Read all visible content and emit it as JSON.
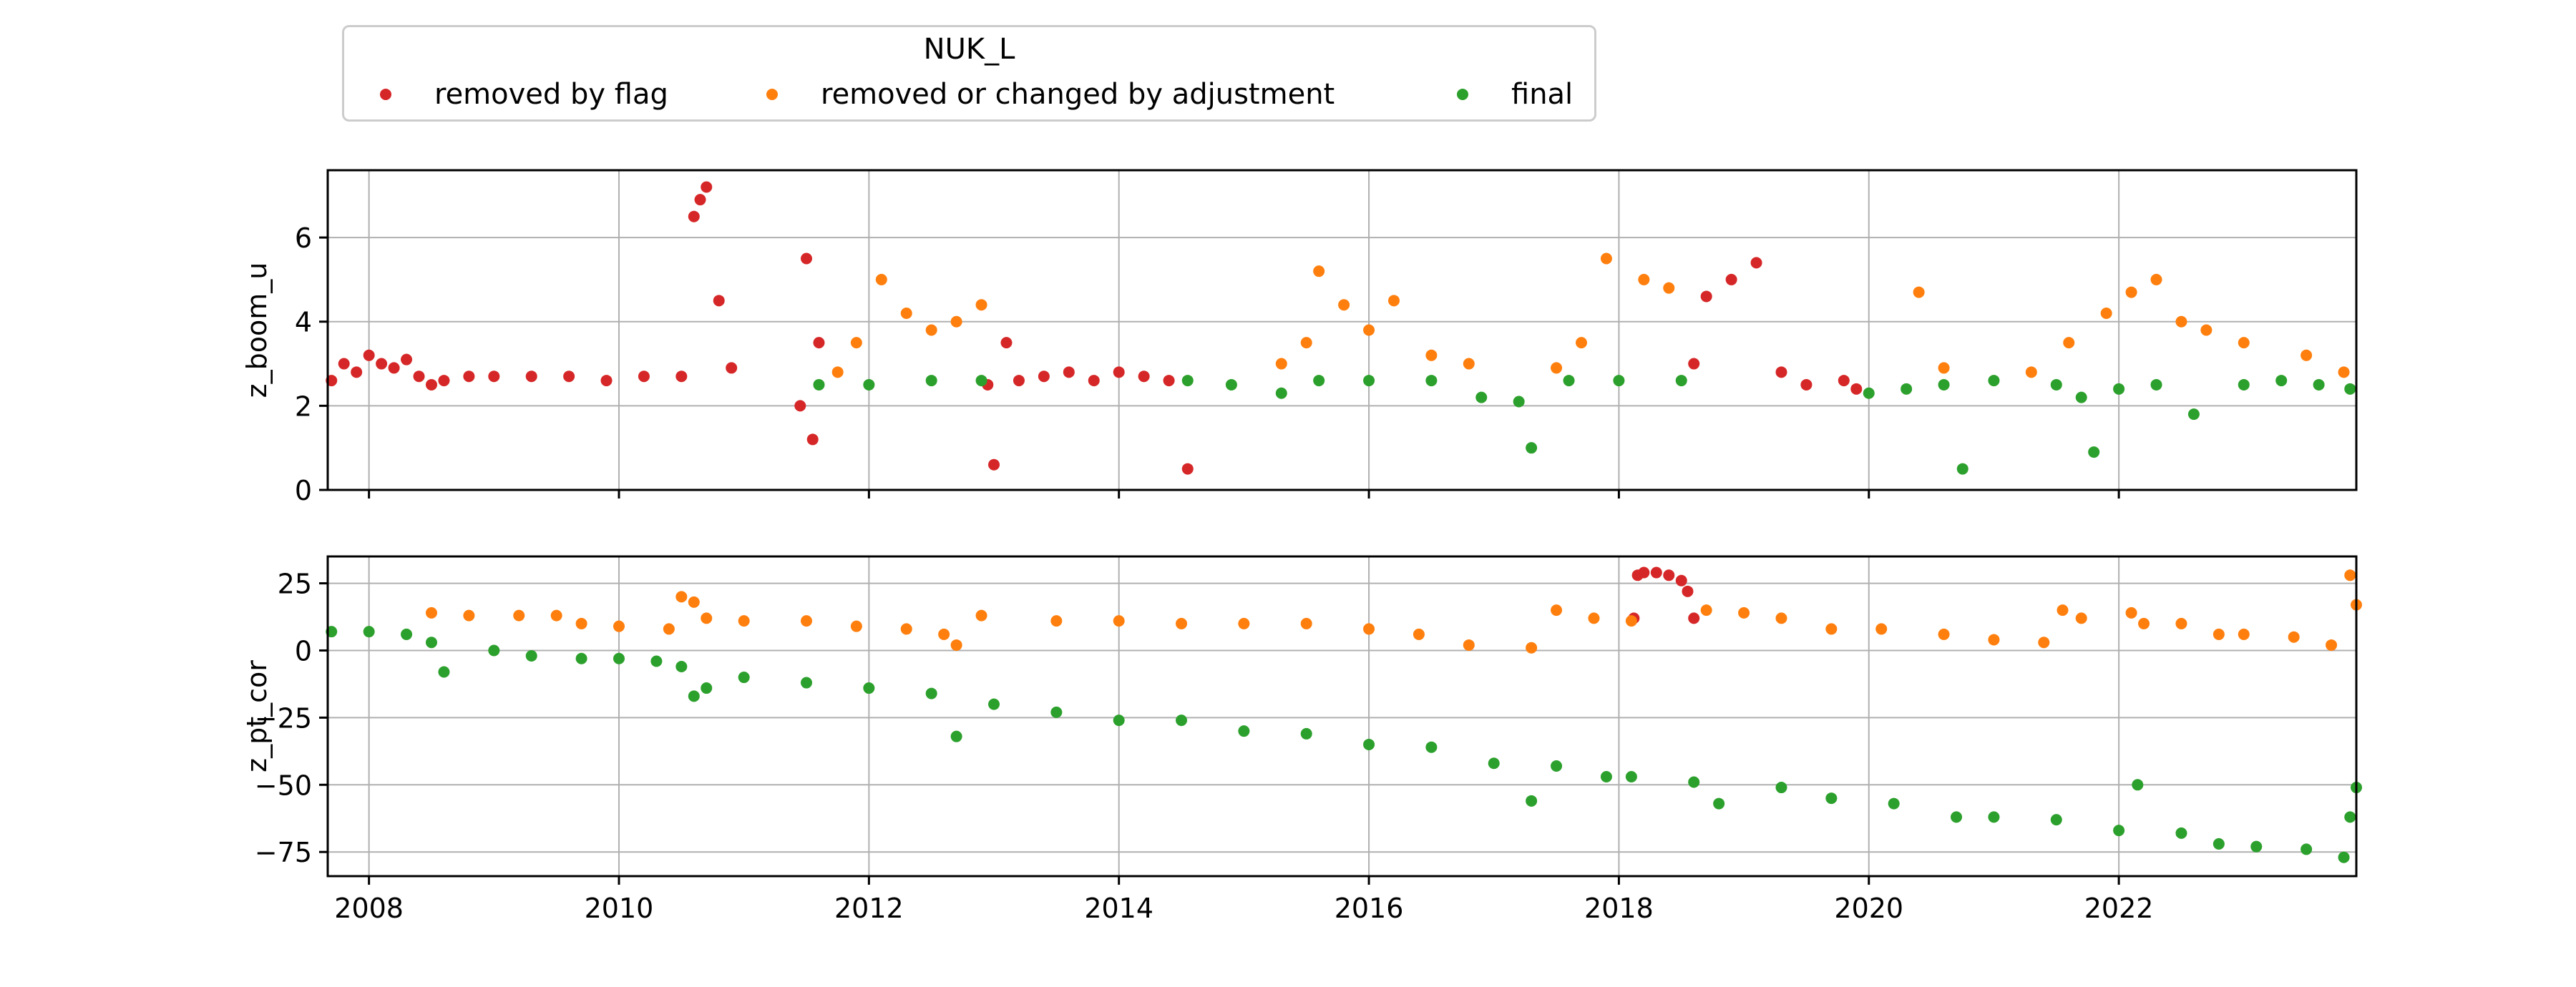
{
  "legend": {
    "title": "NUK_L",
    "entries": [
      {
        "label": "removed by flag",
        "color": "#d62728"
      },
      {
        "label": "removed or changed by adjustment",
        "color": "#ff7f0e"
      },
      {
        "label": "final",
        "color": "#2ca02c"
      }
    ]
  },
  "chart_data": [
    {
      "type": "scatter",
      "title": "",
      "xlabel": "",
      "ylabel": "z_boom_u",
      "xlim": [
        2007.67,
        2023.9
      ],
      "ylim": [
        0,
        7.6
      ],
      "yticks": [
        0,
        2,
        4,
        6
      ],
      "grid": true,
      "x_tick_labels_visible": false,
      "series": [
        {
          "name": "removed by flag",
          "color": "#d62728",
          "x": [
            2007.7,
            2007.8,
            2007.9,
            2008.0,
            2008.1,
            2008.2,
            2008.3,
            2008.4,
            2008.5,
            2008.6,
            2008.8,
            2009.0,
            2009.3,
            2009.6,
            2009.9,
            2010.2,
            2010.5,
            2010.6,
            2010.65,
            2010.7,
            2010.8,
            2010.9,
            2011.45,
            2011.5,
            2011.55,
            2011.6,
            2012.95,
            2013.0,
            2013.1,
            2013.2,
            2013.4,
            2013.6,
            2013.8,
            2014.0,
            2014.2,
            2014.4,
            2014.55,
            2018.6,
            2018.7,
            2018.9,
            2019.1,
            2019.3,
            2019.5,
            2019.8,
            2019.9
          ],
          "y": [
            2.6,
            3.0,
            2.8,
            3.2,
            3.0,
            2.9,
            3.1,
            2.7,
            2.5,
            2.6,
            2.7,
            2.7,
            2.7,
            2.7,
            2.6,
            2.7,
            2.7,
            6.5,
            6.9,
            7.2,
            4.5,
            2.9,
            2.0,
            5.5,
            1.2,
            3.5,
            2.5,
            0.6,
            3.5,
            2.6,
            2.7,
            2.8,
            2.6,
            2.8,
            2.7,
            2.6,
            0.5,
            3.0,
            4.6,
            5.0,
            5.4,
            2.8,
            2.5,
            2.6,
            2.4
          ]
        },
        {
          "name": "removed or changed by adjustment",
          "color": "#ff7f0e",
          "x": [
            2011.75,
            2011.9,
            2012.1,
            2012.3,
            2012.5,
            2012.7,
            2012.9,
            2015.3,
            2015.5,
            2015.6,
            2015.8,
            2016.0,
            2016.2,
            2016.5,
            2016.8,
            2017.5,
            2017.7,
            2017.9,
            2018.2,
            2018.4,
            2020.4,
            2020.6,
            2021.3,
            2021.6,
            2021.9,
            2022.1,
            2022.3,
            2022.5,
            2022.7,
            2023.0,
            2023.5,
            2023.8
          ],
          "y": [
            2.8,
            3.5,
            5.0,
            4.2,
            3.8,
            4.0,
            4.4,
            3.0,
            3.5,
            5.2,
            4.4,
            3.8,
            4.5,
            3.2,
            3.0,
            2.9,
            3.5,
            5.5,
            5.0,
            4.8,
            4.7,
            2.9,
            2.8,
            3.5,
            4.2,
            4.7,
            5.0,
            4.0,
            3.8,
            3.5,
            3.2,
            2.8
          ]
        },
        {
          "name": "final",
          "color": "#2ca02c",
          "x": [
            2011.6,
            2012.0,
            2012.5,
            2012.9,
            2014.55,
            2014.9,
            2015.3,
            2015.6,
            2016.0,
            2016.5,
            2016.9,
            2017.2,
            2017.3,
            2017.6,
            2018.0,
            2018.5,
            2020.0,
            2020.3,
            2020.6,
            2020.75,
            2021.0,
            2021.5,
            2021.7,
            2021.8,
            2022.0,
            2022.3,
            2022.6,
            2023.0,
            2023.3,
            2023.6,
            2023.85
          ],
          "y": [
            2.5,
            2.5,
            2.6,
            2.6,
            2.6,
            2.5,
            2.3,
            2.6,
            2.6,
            2.6,
            2.2,
            2.1,
            1.0,
            2.6,
            2.6,
            2.6,
            2.3,
            2.4,
            2.5,
            0.5,
            2.6,
            2.5,
            2.2,
            0.9,
            2.4,
            2.5,
            1.8,
            2.5,
            2.6,
            2.5,
            2.4
          ]
        }
      ]
    },
    {
      "type": "scatter",
      "title": "",
      "xlabel": "",
      "ylabel": "z_pt_cor",
      "xlim": [
        2007.67,
        2023.9
      ],
      "ylim": [
        -84,
        35
      ],
      "yticks": [
        -75,
        -50,
        -25,
        0,
        25
      ],
      "grid": true,
      "x_ticks": [
        2008,
        2010,
        2012,
        2014,
        2016,
        2018,
        2020,
        2022
      ],
      "series": [
        {
          "name": "removed by flag",
          "color": "#d62728",
          "x": [
            2018.12,
            2018.15,
            2018.2,
            2018.3,
            2018.4,
            2018.5,
            2018.55,
            2018.6
          ],
          "y": [
            12,
            28,
            29,
            29,
            28,
            26,
            22,
            12
          ]
        },
        {
          "name": "removed or changed by adjustment",
          "color": "#ff7f0e",
          "x": [
            2008.5,
            2008.8,
            2009.2,
            2009.5,
            2009.7,
            2010.0,
            2010.4,
            2010.5,
            2010.6,
            2010.7,
            2011.0,
            2011.5,
            2011.9,
            2012.3,
            2012.6,
            2012.7,
            2012.9,
            2013.5,
            2014.0,
            2014.5,
            2015.0,
            2015.5,
            2016.0,
            2016.4,
            2016.8,
            2017.3,
            2017.5,
            2017.8,
            2018.1,
            2018.7,
            2019.0,
            2019.3,
            2019.7,
            2020.1,
            2020.6,
            2021.0,
            2021.4,
            2021.55,
            2021.7,
            2022.1,
            2022.2,
            2022.5,
            2022.8,
            2023.0,
            2023.4,
            2023.7,
            2023.85,
            2023.9
          ],
          "y": [
            14,
            13,
            13,
            13,
            10,
            9,
            8,
            20,
            18,
            12,
            11,
            11,
            9,
            8,
            6,
            2,
            13,
            11,
            11,
            10,
            10,
            10,
            8,
            6,
            2,
            1,
            15,
            12,
            11,
            15,
            14,
            12,
            8,
            8,
            6,
            4,
            3,
            15,
            12,
            14,
            10,
            10,
            6,
            6,
            5,
            2,
            28,
            17
          ]
        },
        {
          "name": "final",
          "color": "#2ca02c",
          "x": [
            2007.7,
            2008.0,
            2008.3,
            2008.5,
            2008.6,
            2009.0,
            2009.3,
            2009.7,
            2010.0,
            2010.3,
            2010.5,
            2010.6,
            2010.7,
            2011.0,
            2011.5,
            2012.0,
            2012.5,
            2012.7,
            2013.0,
            2013.5,
            2014.0,
            2014.5,
            2015.0,
            2015.5,
            2016.0,
            2016.5,
            2017.0,
            2017.3,
            2017.5,
            2017.9,
            2018.1,
            2018.6,
            2018.8,
            2019.3,
            2019.7,
            2020.2,
            2020.7,
            2021.0,
            2021.5,
            2022.0,
            2022.15,
            2022.5,
            2022.8,
            2023.1,
            2023.5,
            2023.8,
            2023.85,
            2023.9
          ],
          "y": [
            7,
            7,
            6,
            3,
            -8,
            0,
            -2,
            -3,
            -3,
            -4,
            -6,
            -17,
            -14,
            -10,
            -12,
            -14,
            -16,
            -32,
            -20,
            -23,
            -26,
            -26,
            -30,
            -31,
            -35,
            -36,
            -42,
            -56,
            -43,
            -47,
            -47,
            -49,
            -57,
            -51,
            -55,
            -57,
            -62,
            -62,
            -63,
            -67,
            -50,
            -68,
            -72,
            -73,
            -74,
            -77,
            -62,
            -51
          ]
        }
      ]
    }
  ]
}
